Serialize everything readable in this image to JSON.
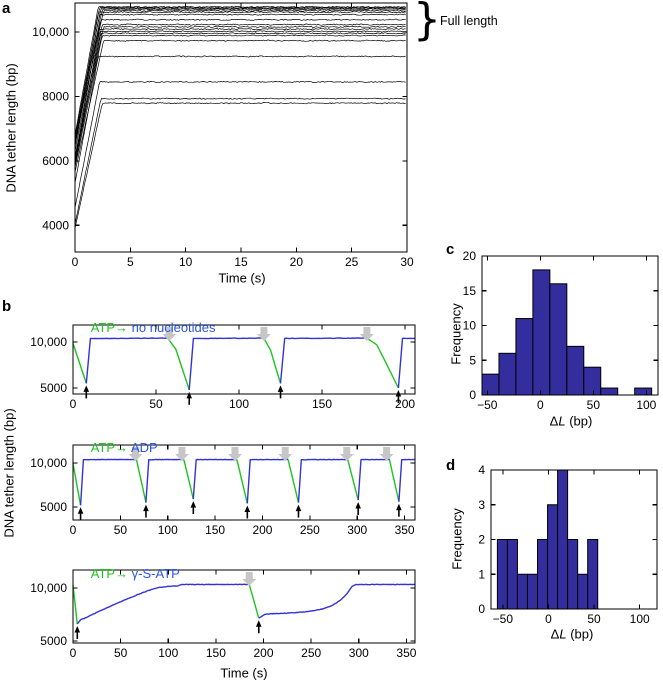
{
  "panel_labels": {
    "a": "a",
    "b": "b",
    "c": "c",
    "d": "d"
  },
  "panel_a": {
    "xlabel": "Time (s)",
    "ylabel": "DNA tether length (bp)",
    "annotation": {
      "brace": "}",
      "label": "Full length"
    }
  },
  "panel_b": {
    "xlabel": "Time (s)",
    "ylabel": "DNA tether length (bp)",
    "titles": [
      {
        "prefix": "ATP→",
        "suffix": " no nucleotides"
      },
      {
        "prefix": "ATP→",
        "suffix": " ADP"
      },
      {
        "prefix": "ATP→",
        "suffix": " γ-S-ATP"
      }
    ]
  },
  "panel_c": {
    "ylabel": "Frequency",
    "xlabel_delta": "Δ",
    "xlabel_var": "L",
    "xlabel_unit": " (bp)"
  },
  "panel_d": {
    "ylabel": "Frequency",
    "xlabel_delta": "Δ",
    "xlabel_var": "L",
    "xlabel_unit": " (bp)"
  },
  "colors": {
    "trace_black": "#000000",
    "trace_green": "#1ec41e",
    "trace_blue": "#3232d8",
    "title_green": "#1ec41e",
    "title_blue": "#2b55e8",
    "hist_fill": "#332d9e",
    "gray_arrow": "#c6c6c6",
    "axis": "#000000"
  },
  "chart_data": [
    {
      "id": "a",
      "type": "line",
      "xlabel": "Time (s)",
      "ylabel": "DNA tether length (bp)",
      "annotation": "Full length",
      "xlim": [
        0,
        30
      ],
      "ylim": [
        3170,
        10900
      ],
      "xticks": {
        "values": [
          0,
          5,
          10,
          15,
          20,
          25,
          30
        ],
        "labels": [
          "0",
          "5",
          "10",
          "15",
          "20",
          "25",
          "30"
        ]
      },
      "yticks": {
        "values": [
          4000,
          6000,
          8000,
          10000
        ],
        "labels": [
          "4000",
          "6000",
          "8000",
          "10,000"
        ]
      },
      "traces": [
        {
          "start": 6800,
          "plateau": 10780
        },
        {
          "start": 6740,
          "plateau": 10755
        },
        {
          "start": 6680,
          "plateau": 10730
        },
        {
          "start": 6620,
          "plateau": 10705
        },
        {
          "start": 6560,
          "plateau": 10660
        },
        {
          "start": 6500,
          "plateau": 10615
        },
        {
          "start": 6430,
          "plateau": 10540
        },
        {
          "start": 6280,
          "plateau": 10380
        },
        {
          "start": 6130,
          "plateau": 10230
        },
        {
          "start": 6060,
          "plateau": 10160
        },
        {
          "start": 6000,
          "plateau": 10090
        },
        {
          "start": 5930,
          "plateau": 10020
        },
        {
          "start": 5870,
          "plateau": 9960
        },
        {
          "start": 5800,
          "plateau": 9890
        },
        {
          "start": 5650,
          "plateau": 9730
        },
        {
          "start": 5300,
          "plateau": 9240
        },
        {
          "start": 4540,
          "plateau": 8450
        },
        {
          "start": 4030,
          "plateau": 7930
        },
        {
          "start": 3900,
          "plateau": 7790
        }
      ]
    },
    {
      "id": "b1",
      "type": "line",
      "title": "ATP→ no nucleotides",
      "xlim": [
        0,
        206
      ],
      "ylim": [
        4350,
        11850
      ],
      "xticks": {
        "values": [
          0,
          50,
          100,
          150,
          200
        ],
        "labels": [
          "0",
          "50",
          "100",
          "150",
          "200"
        ]
      },
      "yticks": {
        "values": [
          5000,
          10000
        ],
        "labels": [
          "5000",
          "10,000"
        ]
      },
      "segments": [
        {
          "color": "green",
          "pts": [
            [
              0,
              9850
            ],
            [
              8,
              5500
            ]
          ]
        },
        {
          "color": "blue",
          "pts": [
            [
              8,
              5500
            ],
            [
              10.5,
              10380
            ],
            [
              57,
              10420
            ]
          ]
        },
        {
          "color": "green",
          "pts": [
            [
              57,
              10420
            ],
            [
              62,
              9200
            ],
            [
              70,
              4800
            ]
          ]
        },
        {
          "color": "blue",
          "pts": [
            [
              70,
              4800
            ],
            [
              72.5,
              10390
            ],
            [
              115,
              10420
            ]
          ]
        },
        {
          "color": "green",
          "pts": [
            [
              115,
              10420
            ],
            [
              119,
              9100
            ],
            [
              125,
              5500
            ]
          ]
        },
        {
          "color": "blue",
          "pts": [
            [
              125,
              5500
            ],
            [
              127.5,
              10390
            ],
            [
              177,
              10430
            ]
          ]
        },
        {
          "color": "green",
          "pts": [
            [
              177,
              10430
            ],
            [
              183,
              9700
            ],
            [
              190,
              7200
            ],
            [
              196,
              5000
            ]
          ]
        },
        {
          "color": "blue",
          "pts": [
            [
              196,
              5000
            ],
            [
              198.5,
              10400
            ],
            [
              206,
              10410
            ]
          ]
        }
      ],
      "gray_arrows": [
        58,
        115,
        177
      ],
      "black_arrows": [
        [
          8,
          5500
        ],
        [
          70,
          4800
        ],
        [
          125,
          5500
        ],
        [
          196,
          5000
        ]
      ]
    },
    {
      "id": "b2",
      "type": "line",
      "title": "ATP→ ADP",
      "xlim": [
        0,
        361
      ],
      "ylim": [
        3520,
        12050
      ],
      "xticks": {
        "values": [
          0,
          50,
          100,
          150,
          200,
          250,
          300,
          350
        ],
        "labels": [
          "0",
          "50",
          "100",
          "150",
          "200",
          "250",
          "300",
          "350"
        ]
      },
      "yticks": {
        "values": [
          5000,
          10000
        ],
        "labels": [
          "5000",
          "10,000"
        ]
      },
      "segments": [
        {
          "color": "green",
          "pts": [
            [
              0,
              9950
            ],
            [
              8,
              5200
            ]
          ]
        },
        {
          "color": "blue",
          "pts": [
            [
              8,
              5200
            ],
            [
              11,
              10380
            ],
            [
              67,
              10400
            ]
          ]
        },
        {
          "color": "green",
          "pts": [
            [
              67,
              10400
            ],
            [
              77,
              5500
            ]
          ]
        },
        {
          "color": "blue",
          "pts": [
            [
              77,
              5500
            ],
            [
              80,
              10380
            ],
            [
              117,
              10400
            ]
          ]
        },
        {
          "color": "green",
          "pts": [
            [
              117,
              10400
            ],
            [
              127,
              5900
            ]
          ]
        },
        {
          "color": "blue",
          "pts": [
            [
              127,
              5900
            ],
            [
              130,
              10380
            ],
            [
              173,
              10400
            ]
          ]
        },
        {
          "color": "green",
          "pts": [
            [
              173,
              10400
            ],
            [
              184,
              5400
            ]
          ]
        },
        {
          "color": "blue",
          "pts": [
            [
              184,
              5400
            ],
            [
              187,
              10380
            ],
            [
              227,
              10400
            ]
          ]
        },
        {
          "color": "green",
          "pts": [
            [
              227,
              10400
            ],
            [
              238,
              5500
            ]
          ]
        },
        {
          "color": "blue",
          "pts": [
            [
              238,
              5500
            ],
            [
              241,
              10380
            ],
            [
              290,
              10400
            ]
          ]
        },
        {
          "color": "green",
          "pts": [
            [
              290,
              10400
            ],
            [
              301,
              5800
            ]
          ]
        },
        {
          "color": "blue",
          "pts": [
            [
              301,
              5800
            ],
            [
              304,
              10380
            ],
            [
              334,
              10400
            ]
          ]
        },
        {
          "color": "green",
          "pts": [
            [
              334,
              10400
            ],
            [
              344,
              5600
            ]
          ]
        },
        {
          "color": "blue",
          "pts": [
            [
              344,
              5600
            ],
            [
              347,
              10380
            ],
            [
              361,
              10400
            ]
          ]
        }
      ],
      "gray_arrows": [
        66,
        115,
        171,
        224,
        289,
        331
      ],
      "black_arrows": [
        [
          8,
          5200
        ],
        [
          77,
          5500
        ],
        [
          127,
          5900
        ],
        [
          184,
          5400
        ],
        [
          238,
          5500
        ],
        [
          301,
          5800
        ],
        [
          344,
          5600
        ]
      ]
    },
    {
      "id": "b3",
      "type": "line",
      "title": "ATP→ γ-S-ATP",
      "xlabel": "Time (s)",
      "xlim": [
        0,
        359
      ],
      "ylim": [
        4810,
        11700
      ],
      "xticks": {
        "values": [
          0,
          50,
          100,
          150,
          200,
          250,
          300,
          350
        ],
        "labels": [
          "0",
          "50",
          "100",
          "150",
          "200",
          "250",
          "300",
          "350"
        ]
      },
      "yticks": {
        "values": [
          5000,
          10000
        ],
        "labels": [
          "5000",
          "10,000"
        ]
      },
      "segments": [
        {
          "color": "green",
          "pts": [
            [
              0,
              10300
            ],
            [
              4.5,
              6600
            ]
          ]
        },
        {
          "color": "blue",
          "pts": [
            [
              4.5,
              6600
            ],
            [
              8,
              7000
            ],
            [
              15,
              7250
            ],
            [
              25,
              7700
            ],
            [
              40,
              8300
            ],
            [
              55,
              8900
            ],
            [
              70,
              9450
            ],
            [
              82,
              9850
            ],
            [
              90,
              10050
            ],
            [
              100,
              10150
            ],
            [
              110,
              10200
            ],
            [
              114,
              10330
            ],
            [
              185,
              10340
            ]
          ]
        },
        {
          "color": "green",
          "pts": [
            [
              185,
              10340
            ],
            [
              195,
              7150
            ]
          ]
        },
        {
          "color": "blue",
          "pts": [
            [
              195,
              7150
            ],
            [
              201,
              7500
            ],
            [
              210,
              7580
            ],
            [
              225,
              7630
            ],
            [
              240,
              7720
            ],
            [
              252,
              7860
            ],
            [
              263,
              8050
            ],
            [
              272,
              8350
            ],
            [
              280,
              8800
            ],
            [
              287,
              9400
            ],
            [
              293,
              10150
            ],
            [
              297,
              10330
            ],
            [
              359,
              10340
            ]
          ]
        }
      ],
      "gray_arrows": [
        185
      ],
      "black_arrows": [
        [
          4.5,
          6600
        ],
        [
          195,
          7150
        ]
      ]
    },
    {
      "id": "c",
      "type": "histogram",
      "xlabel": "ΔL (bp)",
      "ylabel": "Frequency",
      "bin_start": -55,
      "bin_width": 16,
      "counts": [
        3,
        6,
        11,
        18,
        16,
        7,
        4,
        1,
        0,
        1
      ],
      "xlim": [
        -55,
        111
      ],
      "ylim": [
        0,
        20
      ],
      "xticks": {
        "values": [
          -50,
          0,
          50,
          100
        ],
        "labels": [
          "−50",
          "0",
          "50",
          "100"
        ]
      },
      "yticks": {
        "values": [
          0,
          5,
          10,
          15,
          20
        ],
        "labels": [
          "0",
          "5",
          "10",
          "15",
          "20"
        ]
      }
    },
    {
      "id": "d",
      "type": "histogram",
      "xlabel": "ΔL (bp)",
      "ylabel": "Frequency",
      "bin_start": -56,
      "bin_width": 11,
      "counts": [
        2,
        2,
        1,
        1,
        2,
        3,
        4,
        2,
        1,
        2
      ],
      "xlim": [
        -63,
        119
      ],
      "ylim": [
        0,
        4
      ],
      "xticks": {
        "values": [
          -50,
          0,
          50,
          100
        ],
        "labels": [
          "−50",
          "0",
          "50",
          "100"
        ]
      },
      "yticks": {
        "values": [
          0,
          1,
          2,
          3,
          4
        ],
        "labels": [
          "0",
          "1",
          "2",
          "3",
          "4"
        ]
      }
    }
  ]
}
